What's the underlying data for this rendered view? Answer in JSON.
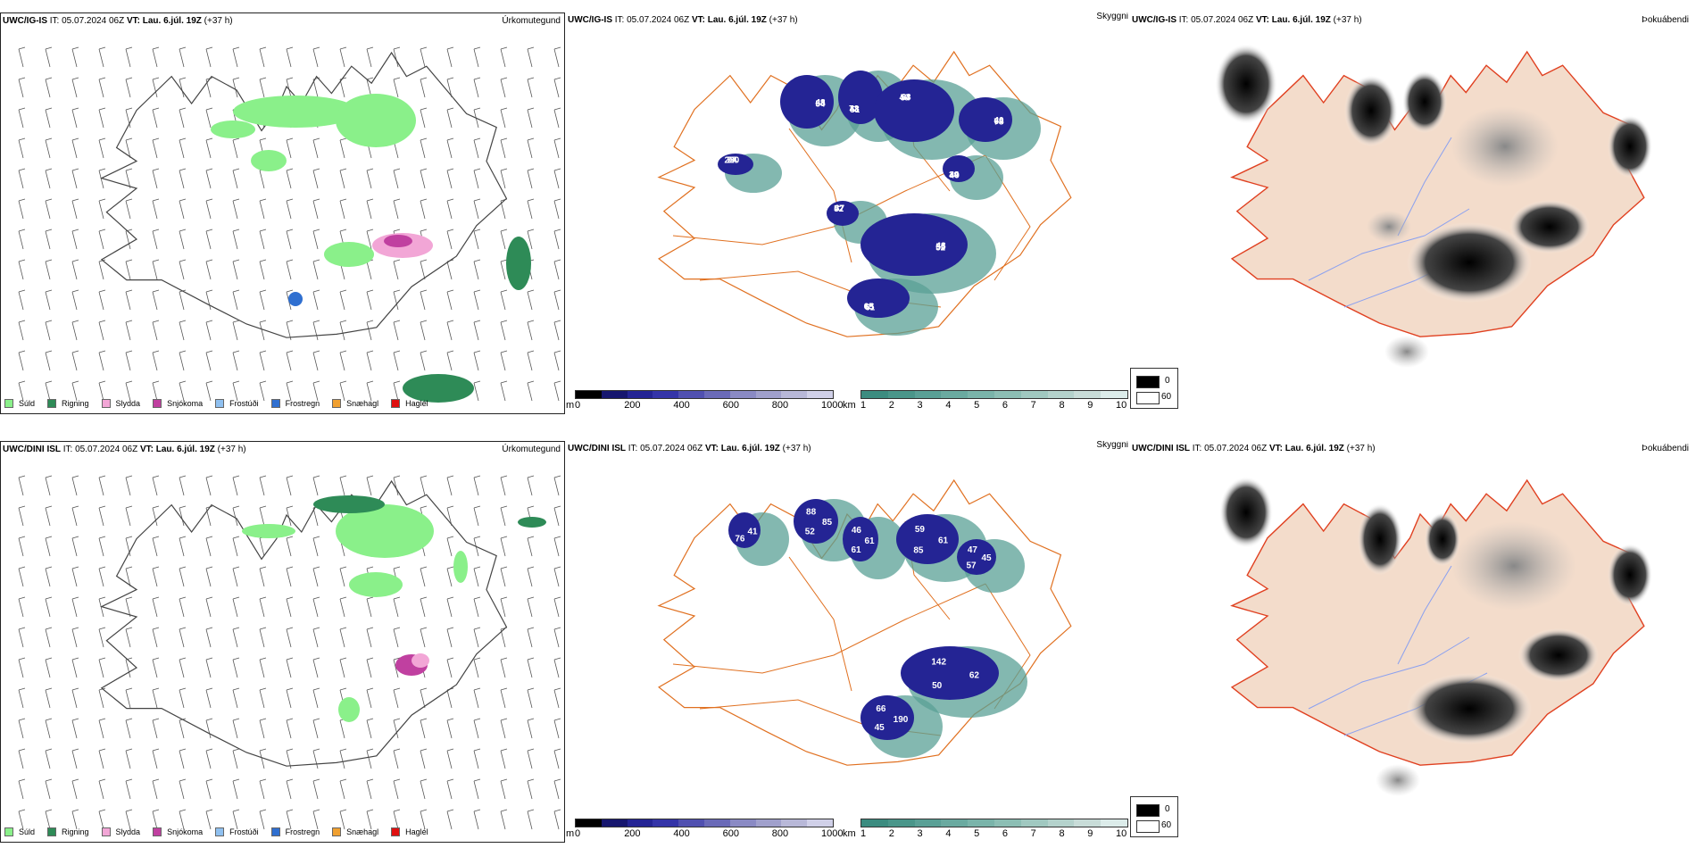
{
  "common": {
    "it": "IT: 05.07.2024 06Z",
    "vt_label": "VT:",
    "vt_value": "Lau. 6.júl. 19Z",
    "lead": "(+37 h)"
  },
  "rows": [
    {
      "model": "UWC/IG-IS",
      "precip_title": "Úrkomutegund",
      "ceiling_title": "Skyggni",
      "fog_title": "Þokuábendi",
      "blob_labels": [
        "48",
        "51",
        "49",
        "40",
        "49",
        "52",
        "48",
        "61",
        "77",
        "63",
        "48",
        "54",
        "64",
        "44",
        "47",
        "55",
        "65",
        "230",
        "54",
        "72",
        "63",
        "73",
        "39",
        "37",
        "52",
        "65",
        "94"
      ]
    },
    {
      "model": "UWC/DINI ISL",
      "precip_title": "Úrkomutegund",
      "ceiling_title": "Skyggni",
      "fog_title": "Þokuábendi",
      "blob_labels": [
        "85",
        "61",
        "59",
        "45",
        "50",
        "66",
        "41",
        "52",
        "46",
        "61",
        "57",
        "142",
        "190",
        "76",
        "88",
        "61",
        "85",
        "47",
        "62",
        "45"
      ]
    }
  ],
  "precip_legend": [
    {
      "label": "Súld",
      "color": "#8af08a"
    },
    {
      "label": "Rigning",
      "color": "#2e8b57"
    },
    {
      "label": "Slydda",
      "color": "#f2a6d6"
    },
    {
      "label": "Snjókoma",
      "color": "#c040a0"
    },
    {
      "label": "Frostúði",
      "color": "#8fc0f0"
    },
    {
      "label": "Frostregn",
      "color": "#2f6fd0"
    },
    {
      "label": "Snæhagl",
      "color": "#f0a030"
    },
    {
      "label": "Haglél",
      "color": "#e01010"
    }
  ],
  "ceiling_bar": {
    "unit": "m",
    "ticks": [
      "0",
      "200",
      "400",
      "600",
      "800",
      "1000"
    ],
    "colors": [
      "#000000",
      "#16166e",
      "#242494",
      "#3434a8",
      "#5050b0",
      "#6a6ab8",
      "#8a8ac4",
      "#a0a0cc",
      "#b8b8d8",
      "#d0d0e8"
    ]
  },
  "vis_bar": {
    "unit": "km",
    "ticks": [
      "1",
      "2",
      "3",
      "4",
      "5",
      "6",
      "7",
      "8",
      "9",
      "10"
    ],
    "colors": [
      "#3c8c80",
      "#4a968a",
      "#5aa096",
      "#6aaaa0",
      "#7ab4aa",
      "#8cbeb4",
      "#a0c8c0",
      "#b4d2cc",
      "#c8dcd8",
      "#dcecea"
    ]
  },
  "fog_legend": {
    "min": "0",
    "max": "60"
  },
  "colors": {
    "panel_border": "#222222",
    "coast": "#444444",
    "roads": "#e07020",
    "fog_land": "#f3dccb",
    "fog_rivers": "#8aa0f0",
    "fog_roads": "#e04020",
    "wind": "#555555"
  }
}
